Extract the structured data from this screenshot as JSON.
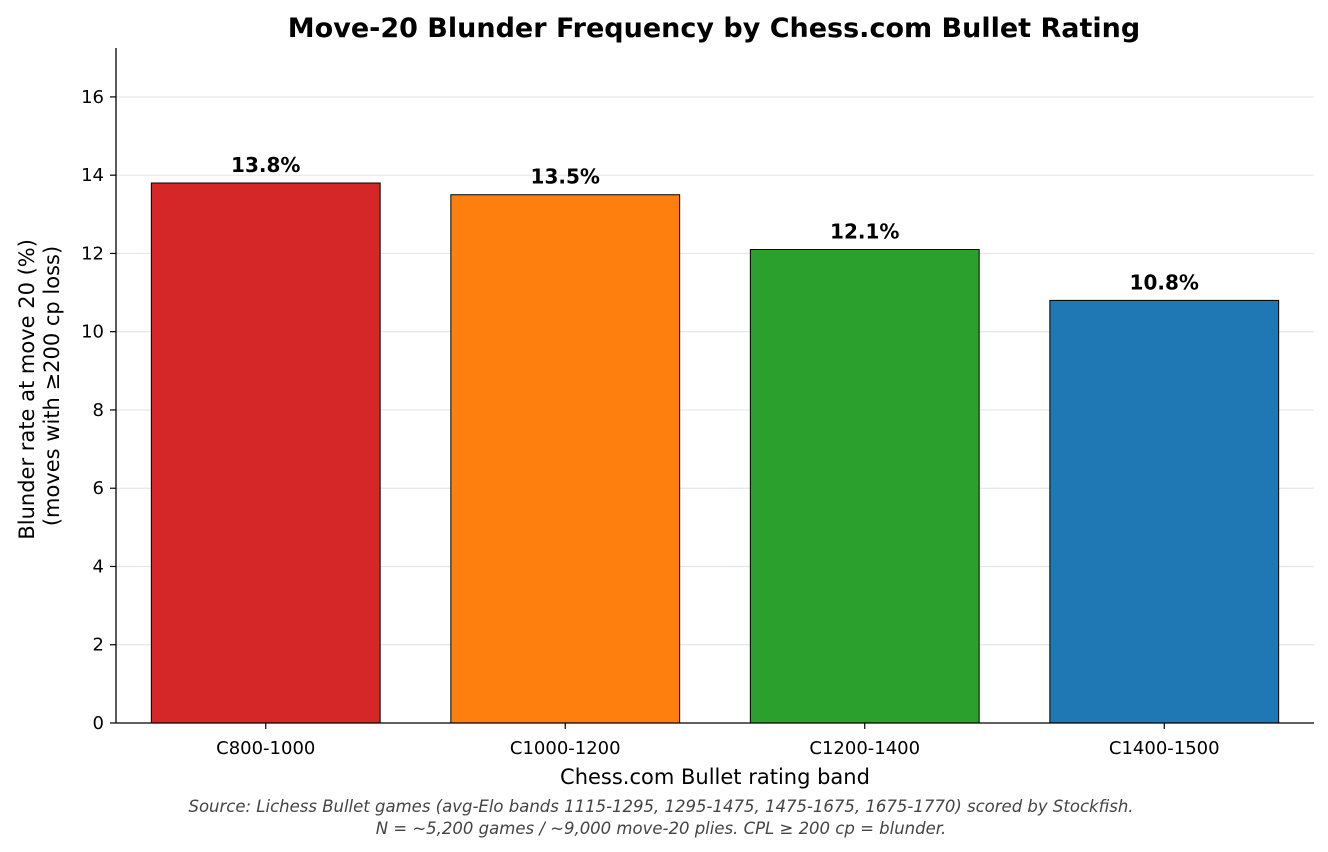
{
  "chart_data": {
    "type": "bar",
    "title": "Move-20 Blunder Frequency by Chess.com Bullet Rating",
    "xlabel": "Chess.com Bullet rating band",
    "ylabel_lines": [
      "Blunder rate at move 20 (%)",
      "(moves with ≥200 cp loss)"
    ],
    "categories": [
      "C800-1000",
      "C1000-1200",
      "C1200-1400",
      "C1400-1500"
    ],
    "values": [
      13.8,
      13.5,
      12.1,
      10.8
    ],
    "value_labels": [
      "13.8%",
      "13.5%",
      "12.1%",
      "10.8%"
    ],
    "colors": [
      "#d62728",
      "#ff7f0e",
      "#2ca02c",
      "#1f77b4"
    ],
    "ylim": [
      0,
      17.25
    ],
    "yticks": [
      0,
      2,
      4,
      6,
      8,
      10,
      12,
      14,
      16
    ],
    "grid": true,
    "grid_axis": "y",
    "legend": false,
    "footnote_lines": [
      "Source: Lichess Bullet games (avg-Elo bands 1115-1295, 1295-1475, 1475-1675, 1675-1770) scored by Stockfish.",
      "N = ~5,200 games / ~9,000 move-20 plies. CPL ≥ 200 cp = blunder."
    ]
  }
}
